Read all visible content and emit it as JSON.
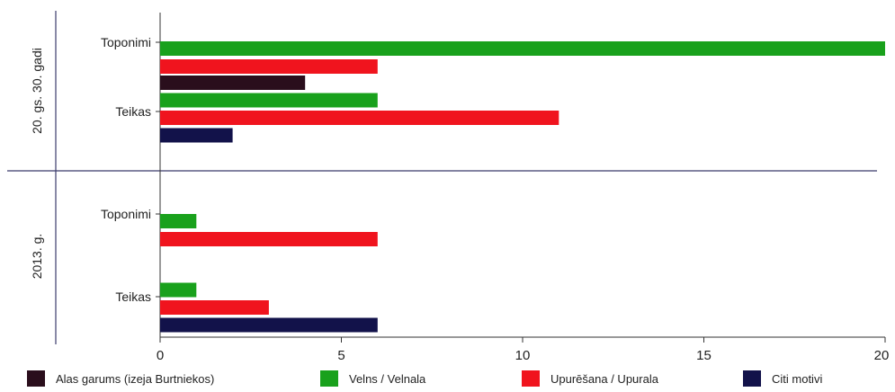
{
  "chart_data": {
    "type": "bar",
    "orientation": "horizontal",
    "title": "",
    "xlabel": "",
    "ylabel": "",
    "xlim": [
      0,
      20
    ],
    "x_ticks": [
      "0",
      "5",
      "10",
      "15",
      "20"
    ],
    "grid": false,
    "legend_position": "bottom",
    "groups": [
      {
        "label": "20. gs. 30. gadi",
        "categories": [
          {
            "label": "Toponimi",
            "values": {
              "alas": null,
              "velns": 20,
              "upuresana": 6,
              "citi": null
            }
          },
          {
            "label": "Teikas",
            "values": {
              "alas": 4,
              "velns": 6,
              "upuresana": 11,
              "citi": 2
            }
          }
        ]
      },
      {
        "label": "2013. g.",
        "categories": [
          {
            "label": "Toponimi",
            "values": {
              "alas": null,
              "velns": 1,
              "upuresana": 6,
              "citi": null
            }
          },
          {
            "label": "Teikas",
            "values": {
              "alas": null,
              "velns": 1,
              "upuresana": 3,
              "citi": 6
            }
          }
        ]
      }
    ],
    "series": [
      {
        "key": "alas",
        "name": "Alas garums (izeja Burtniekos)",
        "color": "#2a0e1c"
      },
      {
        "key": "velns",
        "name": "Velns / Velnala",
        "color": "#19a11c"
      },
      {
        "key": "upuresana",
        "name": "Upurēšana / Upurala",
        "color": "#f0141e"
      },
      {
        "key": "citi",
        "name": "Citi motivi",
        "color": "#12124a"
      }
    ]
  }
}
